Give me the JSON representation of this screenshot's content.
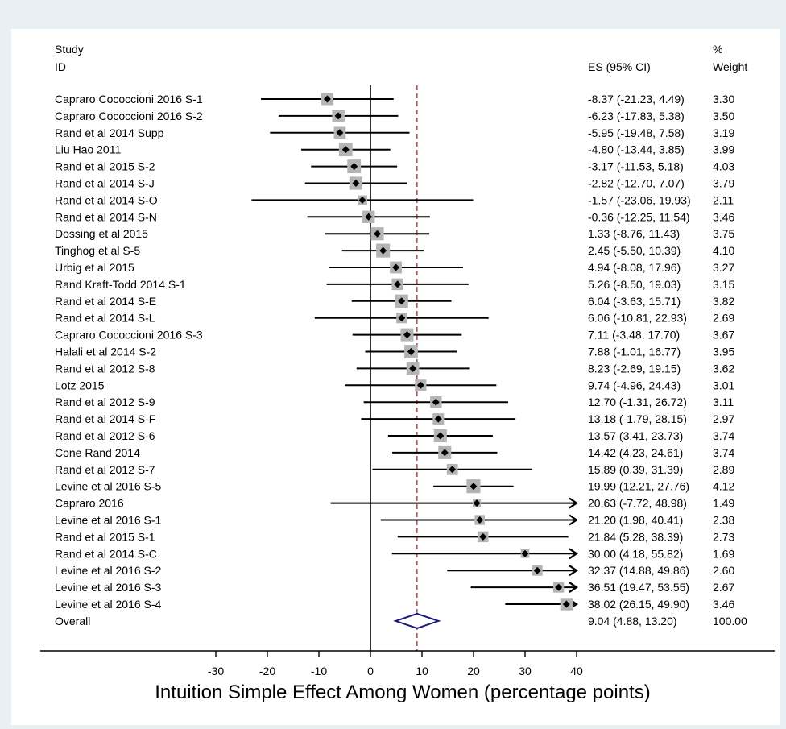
{
  "chart_data": {
    "type": "forest",
    "xlabel": "Intuition Simple Effect Among Women (percentage points)",
    "xlim": [
      -30,
      40
    ],
    "xticks": [
      -30,
      -20,
      -10,
      0,
      10,
      20,
      30,
      40
    ],
    "null_line": 0,
    "overall_line": 9.04,
    "header": {
      "study": [
        "Study",
        "ID"
      ],
      "es": "ES (95% CI)",
      "weight": [
        "%",
        "Weight"
      ]
    },
    "studies": [
      {
        "id": "Capraro Cococcioni 2016 S-1",
        "es": -8.37,
        "lo": -21.23,
        "hi": 4.49,
        "es_text": "-8.37 (-21.23, 4.49)",
        "weight": "3.30",
        "w": 3.3
      },
      {
        "id": "Capraro Cococcioni 2016 S-2",
        "es": -6.23,
        "lo": -17.83,
        "hi": 5.38,
        "es_text": "-6.23 (-17.83, 5.38)",
        "weight": "3.50",
        "w": 3.5
      },
      {
        "id": "Rand et al 2014 Supp",
        "es": -5.95,
        "lo": -19.48,
        "hi": 7.58,
        "es_text": "-5.95 (-19.48, 7.58)",
        "weight": "3.19",
        "w": 3.19
      },
      {
        "id": "Liu Hao 2011",
        "es": -4.8,
        "lo": -13.44,
        "hi": 3.85,
        "es_text": "-4.80 (-13.44, 3.85)",
        "weight": "3.99",
        "w": 3.99
      },
      {
        "id": "Rand et al 2015 S-2",
        "es": -3.17,
        "lo": -11.53,
        "hi": 5.18,
        "es_text": "-3.17 (-11.53, 5.18)",
        "weight": "4.03",
        "w": 4.03
      },
      {
        "id": "Rand et al 2014 S-J",
        "es": -2.82,
        "lo": -12.7,
        "hi": 7.07,
        "es_text": "-2.82 (-12.70, 7.07)",
        "weight": "3.79",
        "w": 3.79
      },
      {
        "id": "Rand et al 2014 S-O",
        "es": -1.57,
        "lo": -23.06,
        "hi": 19.93,
        "es_text": "-1.57 (-23.06, 19.93)",
        "weight": "2.11",
        "w": 2.11
      },
      {
        "id": "Rand et al 2014 S-N",
        "es": -0.36,
        "lo": -12.25,
        "hi": 11.54,
        "es_text": "-0.36 (-12.25, 11.54)",
        "weight": "3.46",
        "w": 3.46
      },
      {
        "id": "Dossing et al 2015",
        "es": 1.33,
        "lo": -8.76,
        "hi": 11.43,
        "es_text": "1.33 (-8.76, 11.43)",
        "weight": "3.75",
        "w": 3.75
      },
      {
        "id": "Tinghog et al S-5",
        "es": 2.45,
        "lo": -5.5,
        "hi": 10.39,
        "es_text": "2.45 (-5.50, 10.39)",
        "weight": "4.10",
        "w": 4.1
      },
      {
        "id": "Urbig et al 2015",
        "es": 4.94,
        "lo": -8.08,
        "hi": 17.96,
        "es_text": "4.94 (-8.08, 17.96)",
        "weight": "3.27",
        "w": 3.27
      },
      {
        "id": "Rand Kraft-Todd 2014 S-1",
        "es": 5.26,
        "lo": -8.5,
        "hi": 19.03,
        "es_text": "5.26 (-8.50, 19.03)",
        "weight": "3.15",
        "w": 3.15
      },
      {
        "id": "Rand et al 2014 S-E",
        "es": 6.04,
        "lo": -3.63,
        "hi": 15.71,
        "es_text": "6.04 (-3.63, 15.71)",
        "weight": "3.82",
        "w": 3.82
      },
      {
        "id": "Rand et al 2014 S-L",
        "es": 6.06,
        "lo": -10.81,
        "hi": 22.93,
        "es_text": "6.06 (-10.81, 22.93)",
        "weight": "2.69",
        "w": 2.69
      },
      {
        "id": "Capraro Cococcioni 2016 S-3",
        "es": 7.11,
        "lo": -3.48,
        "hi": 17.7,
        "es_text": "7.11 (-3.48, 17.70)",
        "weight": "3.67",
        "w": 3.67
      },
      {
        "id": "Halali et al 2014 S-2",
        "es": 7.88,
        "lo": -1.01,
        "hi": 16.77,
        "es_text": "7.88 (-1.01, 16.77)",
        "weight": "3.95",
        "w": 3.95
      },
      {
        "id": "Rand et al 2012 S-8",
        "es": 8.23,
        "lo": -2.69,
        "hi": 19.15,
        "es_text": "8.23 (-2.69, 19.15)",
        "weight": "3.62",
        "w": 3.62
      },
      {
        "id": "Lotz 2015",
        "es": 9.74,
        "lo": -4.96,
        "hi": 24.43,
        "es_text": "9.74 (-4.96, 24.43)",
        "weight": "3.01",
        "w": 3.01
      },
      {
        "id": "Rand et al 2012 S-9",
        "es": 12.7,
        "lo": -1.31,
        "hi": 26.72,
        "es_text": "12.70 (-1.31, 26.72)",
        "weight": "3.11",
        "w": 3.11
      },
      {
        "id": "Rand et al 2014 S-F",
        "es": 13.18,
        "lo": -1.79,
        "hi": 28.15,
        "es_text": "13.18 (-1.79, 28.15)",
        "weight": "2.97",
        "w": 2.97
      },
      {
        "id": "Rand et al 2012 S-6",
        "es": 13.57,
        "lo": 3.41,
        "hi": 23.73,
        "es_text": "13.57 (3.41, 23.73)",
        "weight": "3.74",
        "w": 3.74
      },
      {
        "id": "Cone Rand 2014",
        "es": 14.42,
        "lo": 4.23,
        "hi": 24.61,
        "es_text": "14.42 (4.23, 24.61)",
        "weight": "3.74",
        "w": 3.74
      },
      {
        "id": "Rand et al 2012 S-7",
        "es": 15.89,
        "lo": 0.39,
        "hi": 31.39,
        "es_text": "15.89 (0.39, 31.39)",
        "weight": "2.89",
        "w": 2.89
      },
      {
        "id": "Levine et al 2016 S-5",
        "es": 19.99,
        "lo": 12.21,
        "hi": 27.76,
        "es_text": "19.99 (12.21, 27.76)",
        "weight": "4.12",
        "w": 4.12
      },
      {
        "id": "Capraro 2016",
        "es": 20.63,
        "lo": -7.72,
        "hi": 48.98,
        "es_text": "20.63 (-7.72, 48.98)",
        "weight": "1.49",
        "w": 1.49
      },
      {
        "id": "Levine et al 2016 S-1",
        "es": 21.2,
        "lo": 1.98,
        "hi": 40.41,
        "es_text": "21.20 (1.98, 40.41)",
        "weight": "2.38",
        "w": 2.38
      },
      {
        "id": "Rand et al 2015 S-1",
        "es": 21.84,
        "lo": 5.28,
        "hi": 38.39,
        "es_text": "21.84 (5.28, 38.39)",
        "weight": "2.73",
        "w": 2.73
      },
      {
        "id": "Rand et al 2014 S-C",
        "es": 30.0,
        "lo": 4.18,
        "hi": 55.82,
        "es_text": "30.00 (4.18, 55.82)",
        "weight": "1.69",
        "w": 1.69
      },
      {
        "id": "Levine et al 2016 S-2",
        "es": 32.37,
        "lo": 14.88,
        "hi": 49.86,
        "es_text": "32.37 (14.88, 49.86)",
        "weight": "2.60",
        "w": 2.6
      },
      {
        "id": "Levine et al 2016 S-3",
        "es": 36.51,
        "lo": 19.47,
        "hi": 53.55,
        "es_text": "36.51 (19.47, 53.55)",
        "weight": "2.67",
        "w": 2.67
      },
      {
        "id": "Levine et al 2016 S-4",
        "es": 38.02,
        "lo": 26.15,
        "hi": 49.9,
        "es_text": "38.02 (26.15, 49.90)",
        "weight": "3.46",
        "w": 3.46
      }
    ],
    "overall": {
      "id": "Overall",
      "es": 9.04,
      "lo": 4.88,
      "hi": 13.2,
      "es_text": "9.04 (4.88, 13.20)",
      "weight": "100.00"
    },
    "colors": {
      "background": "#e8f0f4",
      "plot_background": "#ffffff",
      "weight_box": "#b4b4b4",
      "line": "#000000",
      "overall_diamond": "#1a1a7a",
      "overall_line": "#a03030"
    }
  }
}
